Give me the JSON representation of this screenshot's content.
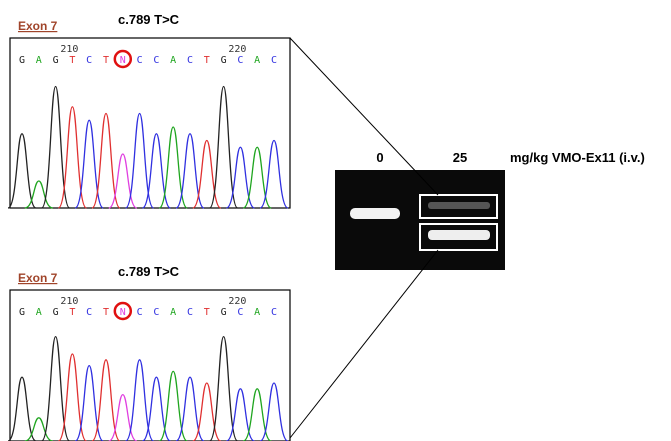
{
  "panels": [
    {
      "exon": "Exon 7",
      "mutation": "c.789 T>C",
      "positions": [
        "210",
        "220"
      ],
      "bases": [
        "G",
        "A",
        "G",
        "T",
        "C",
        "T",
        "N",
        "C",
        "C",
        "A",
        "C",
        "T",
        "G",
        "C",
        "A",
        "C"
      ]
    },
    {
      "exon": "Exon 7",
      "mutation": "c.789 T>C",
      "positions": [
        "210",
        "220"
      ],
      "bases": [
        "G",
        "A",
        "G",
        "T",
        "C",
        "T",
        "N",
        "C",
        "C",
        "A",
        "C",
        "T",
        "G",
        "C",
        "A",
        "C"
      ]
    }
  ],
  "gel": {
    "lanes": [
      "0",
      "25"
    ],
    "treatment": "mg/kg VMO-Ex11 (i.v.)"
  }
}
